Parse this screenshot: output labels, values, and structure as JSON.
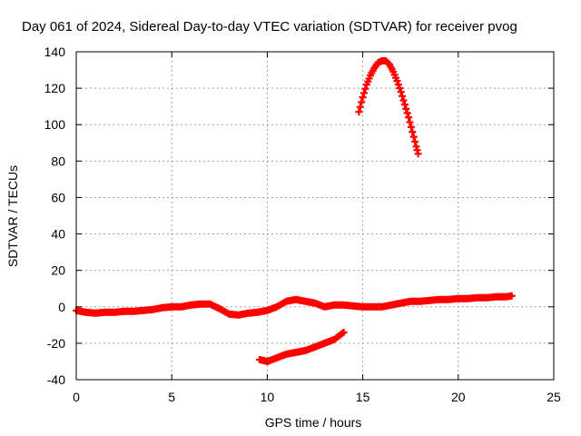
{
  "chart_data": {
    "type": "scatter",
    "title": "Day 061 of 2024, Sidereal Day-to-day VTEC variation (SDTVAR) for receiver pvog",
    "xlabel": "GPS time / hours",
    "ylabel": "SDTVAR / TECUs",
    "xlim": [
      0,
      25
    ],
    "ylim": [
      -40,
      140
    ],
    "xticks": [
      0,
      5,
      10,
      15,
      20,
      25
    ],
    "yticks": [
      -40,
      -20,
      0,
      20,
      40,
      60,
      80,
      100,
      120,
      140
    ],
    "grid": true,
    "marker": "plus",
    "color": "#ff0000",
    "series": [
      {
        "name": "arc-main",
        "x": [
          0.0,
          0.5,
          1.0,
          1.5,
          2.0,
          2.5,
          3.0,
          3.5,
          4.0,
          4.5,
          5.0,
          5.5,
          6.0,
          6.5,
          7.0,
          7.5,
          8.0,
          8.5,
          9.0,
          9.5,
          10.0,
          10.5,
          11.0,
          11.5,
          12.0,
          12.5,
          13.0,
          13.5,
          14.0,
          14.5,
          15.0,
          15.5,
          16.0,
          16.5,
          17.0,
          17.5,
          18.0,
          18.5,
          19.0,
          19.5,
          20.0,
          20.5,
          21.0,
          21.5,
          22.0,
          22.5,
          22.8
        ],
        "y": [
          -2,
          -3,
          -3.5,
          -3,
          -3,
          -2.5,
          -2.5,
          -2,
          -1.5,
          -0.5,
          0,
          0,
          1,
          1.5,
          1.5,
          -1,
          -4,
          -4.5,
          -3.5,
          -3,
          -2,
          0,
          3,
          4,
          3,
          2,
          0,
          1,
          1,
          0.5,
          0,
          0,
          0,
          1,
          2,
          3,
          3,
          3.5,
          4,
          4,
          4.5,
          4.5,
          5,
          5,
          5.5,
          5.5,
          6
        ]
      },
      {
        "name": "arc-peak",
        "x": [
          14.8,
          15.0,
          15.2,
          15.4,
          15.6,
          15.8,
          16.0,
          16.2,
          16.4,
          16.6,
          16.8,
          17.0,
          17.2,
          17.4,
          17.6,
          17.8,
          17.9
        ],
        "y": [
          107,
          115,
          122,
          127,
          131,
          134,
          135,
          135,
          133,
          129,
          124,
          118,
          111,
          104,
          96,
          88,
          84
        ]
      },
      {
        "name": "arc-negative",
        "x": [
          9.6,
          10.0,
          10.5,
          11.0,
          11.5,
          12.0,
          12.5,
          13.0,
          13.5,
          14.0
        ],
        "y": [
          -29,
          -30,
          -28,
          -26,
          -25,
          -24,
          -22,
          -20,
          -18,
          -14
        ]
      }
    ]
  }
}
